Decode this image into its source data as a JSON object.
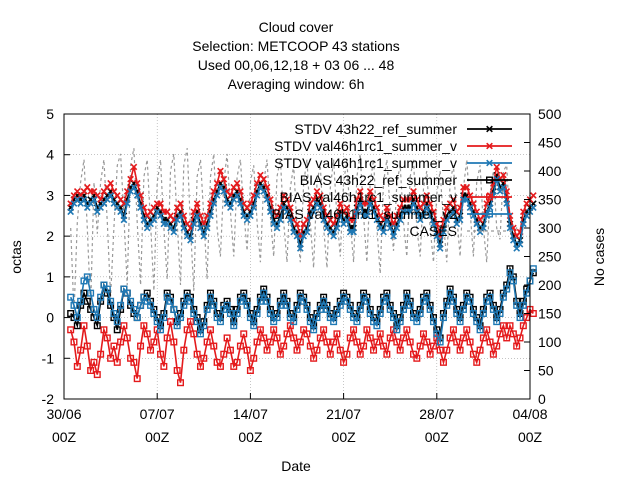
{
  "chart_data": {
    "type": "line",
    "title_lines": [
      "Cloud cover",
      "Selection: METCOOP     43 stations",
      "Used  00,06,12,18  + 03 06 ... 48",
      "Averaging window:  6h"
    ],
    "xlabel": "Date",
    "ylabel": "octas",
    "y2label": "No cases",
    "ylim": [
      -2,
      5
    ],
    "y2lim": [
      0,
      500
    ],
    "x_tick_labels": [
      [
        "30/06",
        "00Z"
      ],
      [
        "07/07",
        "00Z"
      ],
      [
        "14/07",
        "00Z"
      ],
      [
        "21/07",
        "00Z"
      ],
      [
        "28/07",
        "00Z"
      ],
      [
        "04/08",
        "00Z"
      ]
    ],
    "x_range_days": [
      0,
      35
    ],
    "y_ticks": [
      -2,
      -1,
      0,
      1,
      2,
      3,
      4,
      5
    ],
    "y2_ticks": [
      0,
      50,
      100,
      150,
      200,
      250,
      300,
      350,
      400,
      450,
      500
    ],
    "grid": true,
    "legend_position": "top-right",
    "legend": [
      "STDV 43h22_ref_summer",
      "STDV val46h1rc1_summer_v",
      "STDV val46h1rc1_summer_v",
      "BIAS 43h22_ref_summer",
      "BIAS val46h1rc1_summer_v",
      "BIAS val46h1rc1_summer_v2",
      "CASES"
    ],
    "series": [
      {
        "name": "STDV 43h22_ref_summer",
        "color": "#000000",
        "marker": "x",
        "x_start_day": 0.5,
        "x_step_days": 0.25,
        "values": [
          2.7,
          2.9,
          3.0,
          2.9,
          3.0,
          2.8,
          2.9,
          3.0,
          2.7,
          2.8,
          2.9,
          3.0,
          3.1,
          2.9,
          2.8,
          2.7,
          2.5,
          2.9,
          3.2,
          3.3,
          3.1,
          2.8,
          2.5,
          2.3,
          2.4,
          2.5,
          2.7,
          2.6,
          2.4,
          2.4,
          2.3,
          2.2,
          2.5,
          2.6,
          2.3,
          2.1,
          2.0,
          2.4,
          2.6,
          2.3,
          2.1,
          2.3,
          2.6,
          2.9,
          3.1,
          3.3,
          3.2,
          2.9,
          2.8,
          3.0,
          3.1,
          2.9,
          2.6,
          2.5,
          2.6,
          2.8,
          3.1,
          3.3,
          3.2,
          3.0,
          2.7,
          2.4,
          2.3,
          2.5,
          2.8,
          2.7,
          2.5,
          2.2,
          2.1,
          1.8,
          2.1,
          2.2,
          2.6,
          2.7,
          2.9,
          2.8,
          2.5,
          2.3,
          2.2,
          2.1,
          2.3,
          2.6,
          2.4,
          2.5,
          2.2,
          2.2,
          2.7,
          2.9,
          2.6,
          2.6,
          2.9,
          2.7,
          2.5,
          2.3,
          2.2,
          2.5,
          2.3,
          2.1,
          2.3,
          2.5,
          2.7,
          2.7,
          2.7,
          2.9,
          2.7,
          2.5,
          2.6,
          2.8,
          2.6,
          2.4,
          2.1,
          1.8,
          2.2,
          2.5,
          2.6,
          2.7,
          2.4,
          2.5,
          3.0,
          3.0,
          2.8,
          2.6,
          2.4,
          2.2,
          2.3,
          2.6,
          2.8,
          3.1,
          3.5,
          3.2,
          3.3,
          2.9,
          2.3,
          2.0,
          1.8,
          1.9,
          2.4,
          2.6,
          2.7,
          2.8
        ]
      },
      {
        "name": "STDV val46h1rc1_summer_v",
        "color": "#e41a1c",
        "marker": "x",
        "x_start_day": 0.5,
        "x_step_days": 0.25,
        "values": [
          2.8,
          3.0,
          3.1,
          3.0,
          3.1,
          3.2,
          3.1,
          3.1,
          3.0,
          2.9,
          3.1,
          3.2,
          3.3,
          3.1,
          3.0,
          2.9,
          2.8,
          3.1,
          3.4,
          3.7,
          3.3,
          3.0,
          2.7,
          2.5,
          2.6,
          2.7,
          2.8,
          2.8,
          2.6,
          2.6,
          2.5,
          2.4,
          2.7,
          2.8,
          2.5,
          2.3,
          2.2,
          2.6,
          2.8,
          2.5,
          2.3,
          2.5,
          2.8,
          3.1,
          3.3,
          3.6,
          3.4,
          3.1,
          3.0,
          3.2,
          3.3,
          3.1,
          2.8,
          2.7,
          2.8,
          3.0,
          3.3,
          3.5,
          3.4,
          3.2,
          2.9,
          2.6,
          2.5,
          2.7,
          3.0,
          2.9,
          2.7,
          2.4,
          2.3,
          2.0,
          2.3,
          2.4,
          2.8,
          2.9,
          3.1,
          3.0,
          2.7,
          2.5,
          2.4,
          2.3,
          2.5,
          2.8,
          2.6,
          2.7,
          2.4,
          2.4,
          2.9,
          3.1,
          2.8,
          2.8,
          3.1,
          2.9,
          2.7,
          2.5,
          2.4,
          2.7,
          2.5,
          2.3,
          2.5,
          2.7,
          2.9,
          2.9,
          2.9,
          3.1,
          2.9,
          2.7,
          2.8,
          3.0,
          2.8,
          2.6,
          2.3,
          2.0,
          2.4,
          2.7,
          2.8,
          2.9,
          2.6,
          2.7,
          3.2,
          3.2,
          3.0,
          2.8,
          2.6,
          2.4,
          2.5,
          2.8,
          3.0,
          3.3,
          3.7,
          3.4,
          3.5,
          3.1,
          2.5,
          2.2,
          2.0,
          2.1,
          2.6,
          2.8,
          2.9,
          3.0
        ]
      },
      {
        "name": "STDV val46h1rc1_summer_v",
        "color": "#1f78b4",
        "marker": "x",
        "x_start_day": 0.5,
        "x_step_days": 0.25,
        "values": [
          2.6,
          2.8,
          2.9,
          2.8,
          2.9,
          2.7,
          2.8,
          2.9,
          2.6,
          2.7,
          2.8,
          2.9,
          3.0,
          2.8,
          2.7,
          2.6,
          2.4,
          2.8,
          3.1,
          3.2,
          3.0,
          2.7,
          2.4,
          2.2,
          2.3,
          2.4,
          2.6,
          2.5,
          2.3,
          2.3,
          2.2,
          2.1,
          2.4,
          2.5,
          2.2,
          2.0,
          1.9,
          2.3,
          2.5,
          2.2,
          2.0,
          2.2,
          2.5,
          2.8,
          3.0,
          3.2,
          3.1,
          2.8,
          2.7,
          2.9,
          3.0,
          2.8,
          2.5,
          2.4,
          2.5,
          2.7,
          3.0,
          3.2,
          3.1,
          2.9,
          2.6,
          2.3,
          2.2,
          2.4,
          2.7,
          2.6,
          2.4,
          2.1,
          2.0,
          1.7,
          2.0,
          2.1,
          2.5,
          2.6,
          2.8,
          2.7,
          2.4,
          2.2,
          2.1,
          2.0,
          2.2,
          2.5,
          2.3,
          2.4,
          2.1,
          2.1,
          2.6,
          2.8,
          2.5,
          2.5,
          2.8,
          2.6,
          2.4,
          2.2,
          2.1,
          2.4,
          2.2,
          2.0,
          2.2,
          2.4,
          2.6,
          2.6,
          2.6,
          2.8,
          2.6,
          2.4,
          2.5,
          2.7,
          2.5,
          2.3,
          2.0,
          1.7,
          2.1,
          2.4,
          2.5,
          2.6,
          2.3,
          2.4,
          2.9,
          2.9,
          2.7,
          2.5,
          2.3,
          2.1,
          2.2,
          2.5,
          2.7,
          3.0,
          3.4,
          3.1,
          3.2,
          2.8,
          2.2,
          1.9,
          1.7,
          1.8,
          2.3,
          2.5,
          2.6,
          2.7
        ]
      },
      {
        "name": "BIAS 43h22_ref_summer",
        "color": "#000000",
        "marker": "square",
        "x_start_day": 0.5,
        "x_step_days": 0.25,
        "values": [
          0.1,
          0.0,
          -0.2,
          0.3,
          0.6,
          0.4,
          0.2,
          0.0,
          -0.2,
          0.4,
          0.8,
          0.6,
          0.3,
          0.0,
          -0.3,
          0.2,
          0.7,
          0.6,
          0.3,
          0.1,
          0.0,
          0.3,
          0.5,
          0.6,
          0.4,
          0.2,
          0.0,
          -0.2,
          0.1,
          0.6,
          0.5,
          0.2,
          -0.1,
          0.1,
          0.4,
          0.6,
          0.5,
          0.2,
          0.0,
          -0.3,
          -0.1,
          0.3,
          0.6,
          0.4,
          0.1,
          0.0,
          0.3,
          0.4,
          0.2,
          -0.1,
          0.2,
          0.5,
          0.6,
          0.4,
          0.1,
          -0.1,
          0.2,
          0.5,
          0.7,
          0.5,
          0.2,
          0.0,
          0.1,
          0.4,
          0.6,
          0.4,
          0.1,
          0.0,
          0.3,
          0.6,
          0.5,
          0.3,
          0.0,
          -0.2,
          0.1,
          0.3,
          0.5,
          0.3,
          0.1,
          0.0,
          0.2,
          0.4,
          0.6,
          0.5,
          0.3,
          0.1,
          0.0,
          0.3,
          0.6,
          0.5,
          0.2,
          0.0,
          -0.1,
          0.2,
          0.5,
          0.6,
          0.3,
          0.1,
          -0.2,
          0.0,
          0.3,
          0.6,
          0.4,
          0.1,
          0.0,
          0.2,
          0.5,
          0.6,
          0.3,
          0.0,
          -0.3,
          -0.5,
          0.1,
          0.4,
          0.7,
          0.5,
          0.2,
          0.0,
          0.3,
          0.6,
          0.5,
          0.2,
          0.0,
          -0.2,
          0.2,
          0.5,
          0.6,
          0.3,
          0.0,
          0.2,
          0.6,
          0.8,
          1.2,
          1.0,
          0.4,
          0.1,
          0.4,
          0.7,
          0.9,
          1.1
        ]
      },
      {
        "name": "BIAS val46h1rc1_summer_v",
        "color": "#e41a1c",
        "marker": "square",
        "x_start_day": 0.5,
        "x_step_days": 0.25,
        "values": [
          -0.3,
          -0.6,
          -1.2,
          -0.8,
          -0.2,
          -0.7,
          -1.3,
          -1.1,
          -1.4,
          -0.9,
          -0.3,
          -0.5,
          -1.0,
          -0.7,
          -1.1,
          -0.6,
          -0.2,
          -0.5,
          -1.0,
          -1.1,
          -1.5,
          -0.7,
          -0.2,
          -0.4,
          -0.8,
          -0.6,
          -0.3,
          -0.9,
          -1.2,
          -0.5,
          -0.1,
          -0.6,
          -1.3,
          -1.6,
          -0.8,
          -0.3,
          -0.1,
          -0.4,
          -0.9,
          -1.2,
          -1.0,
          -0.6,
          -0.3,
          -0.7,
          -1.1,
          -1.2,
          -0.9,
          -0.5,
          -0.8,
          -1.2,
          -1.1,
          -0.7,
          -0.4,
          -0.8,
          -1.3,
          -1.0,
          -0.6,
          -0.3,
          -0.5,
          -0.8,
          -0.6,
          -0.3,
          -0.5,
          -0.9,
          -0.7,
          -0.4,
          -0.2,
          -0.5,
          -0.8,
          -0.6,
          -0.3,
          -0.4,
          -0.7,
          -1.0,
          -0.8,
          -0.5,
          -0.3,
          -0.6,
          -0.9,
          -0.6,
          -0.4,
          -0.8,
          -1.1,
          -0.9,
          -0.5,
          -0.3,
          -0.6,
          -0.9,
          -0.7,
          -0.3,
          -0.5,
          -0.8,
          -0.6,
          -0.4,
          -0.7,
          -0.9,
          -0.5,
          -0.3,
          -0.6,
          -0.8,
          -0.5,
          -0.3,
          -0.6,
          -0.9,
          -1.0,
          -0.7,
          -0.4,
          -0.6,
          -0.9,
          -0.7,
          -0.5,
          -0.8,
          -1.1,
          -0.8,
          -0.5,
          -0.3,
          -0.6,
          -0.8,
          -0.5,
          -0.3,
          -0.6,
          -0.9,
          -1.1,
          -0.8,
          -0.5,
          -0.3,
          -0.6,
          -0.9,
          -0.7,
          -0.4,
          -0.2,
          -0.5,
          -0.2,
          -0.4,
          -0.7,
          -0.5,
          -0.2,
          0.0,
          0.2,
          0.1
        ]
      },
      {
        "name": "BIAS val46h1rc1_summer_v2",
        "color": "#1f78b4",
        "marker": "square",
        "x_start_day": 0.5,
        "x_step_days": 0.25,
        "values": [
          0.5,
          0.3,
          0.0,
          0.4,
          0.9,
          1.0,
          0.6,
          0.2,
          0.0,
          0.5,
          0.8,
          0.7,
          0.4,
          0.1,
          -0.1,
          0.3,
          0.7,
          0.6,
          0.4,
          0.2,
          0.0,
          0.3,
          0.5,
          0.4,
          0.3,
          0.1,
          -0.1,
          -0.3,
          0.0,
          0.5,
          0.4,
          0.2,
          -0.2,
          0.0,
          0.3,
          0.5,
          0.4,
          0.1,
          -0.1,
          -0.4,
          -0.2,
          0.2,
          0.5,
          0.3,
          0.0,
          -0.1,
          0.2,
          0.3,
          0.1,
          -0.2,
          0.1,
          0.4,
          0.5,
          0.3,
          0.0,
          -0.2,
          0.1,
          0.4,
          0.6,
          0.4,
          0.1,
          -0.1,
          0.0,
          0.3,
          0.5,
          0.3,
          0.0,
          -0.1,
          0.2,
          0.5,
          0.4,
          0.2,
          -0.1,
          -0.3,
          0.0,
          0.2,
          0.4,
          0.2,
          0.0,
          -0.1,
          0.1,
          0.3,
          0.5,
          0.4,
          0.2,
          0.0,
          -0.1,
          0.2,
          0.5,
          0.4,
          0.1,
          -0.1,
          -0.2,
          0.1,
          0.4,
          0.5,
          0.2,
          0.0,
          -0.3,
          -0.1,
          0.2,
          0.5,
          0.3,
          0.0,
          -0.1,
          0.1,
          0.4,
          0.5,
          0.2,
          -0.1,
          -0.4,
          -0.6,
          0.0,
          0.3,
          0.6,
          0.4,
          0.1,
          -0.1,
          0.2,
          0.5,
          0.4,
          0.1,
          -0.1,
          -0.3,
          0.1,
          0.4,
          0.5,
          0.2,
          -0.1,
          0.1,
          0.5,
          0.7,
          1.1,
          0.9,
          0.3,
          0.0,
          0.3,
          0.6,
          0.9,
          1.2
        ]
      },
      {
        "name": "CASES",
        "color": "#999999",
        "marker": "none",
        "axis": "y2",
        "x_start_day": 0.5,
        "x_step_days": 0.25,
        "values": [
          300,
          150,
          310,
          380,
          420,
          300,
          160,
          380,
          290,
          380,
          420,
          310,
          180,
          300,
          410,
          430,
          320,
          200,
          410,
          440,
          310,
          200,
          390,
          420,
          310,
          190,
          380,
          420,
          300,
          210,
          400,
          430,
          310,
          200,
          410,
          440,
          300,
          190,
          390,
          420,
          320,
          210,
          390,
          430,
          300,
          250,
          380,
          430,
          330,
          250,
          390,
          420,
          330,
          260,
          380,
          410,
          310,
          240,
          380,
          420,
          320,
          250,
          390,
          420,
          310,
          240,
          370,
          410,
          300,
          240,
          380,
          420,
          310,
          230,
          380,
          410,
          300,
          230,
          370,
          420,
          320,
          250,
          380,
          420,
          310,
          240,
          390,
          430,
          320,
          240,
          380,
          420,
          300,
          220,
          380,
          420,
          330,
          260,
          380,
          410,
          310,
          250,
          390,
          420,
          300,
          250,
          370,
          400,
          300,
          240,
          360,
          400,
          310,
          240,
          380,
          410,
          320,
          250,
          370,
          420,
          330,
          250,
          380,
          410,
          300,
          240,
          360,
          400,
          300,
          280,
          400,
          410,
          300,
          290,
          300,
          290,
          290
        ]
      }
    ]
  }
}
